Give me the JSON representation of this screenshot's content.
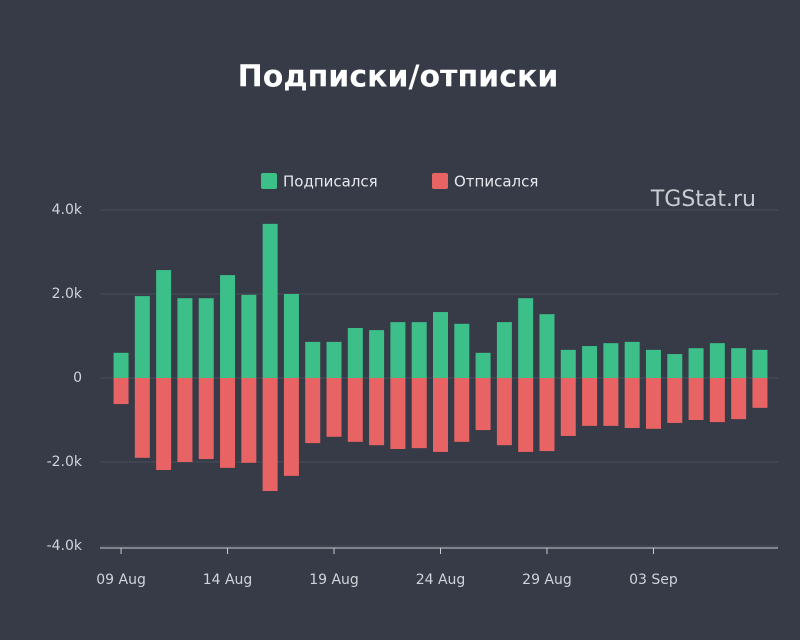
{
  "chart_data": {
    "type": "bar",
    "title": "Подписки/отписки",
    "watermark": "TGStat.ru",
    "categories": [
      "09 Aug",
      null,
      null,
      null,
      null,
      "14 Aug",
      null,
      null,
      null,
      null,
      "19 Aug",
      null,
      null,
      null,
      null,
      "24 Aug",
      null,
      null,
      null,
      null,
      "29 Aug",
      null,
      null,
      null,
      null,
      "03 Sep",
      null,
      null,
      null,
      null,
      null
    ],
    "series": [
      {
        "name": "Подписался",
        "color": "#3dbf8a",
        "values": [
          600,
          1950,
          2570,
          1900,
          1900,
          2450,
          1980,
          3670,
          2000,
          860,
          860,
          1190,
          1140,
          1330,
          1330,
          1570,
          1290,
          600,
          1330,
          1900,
          1520,
          670,
          760,
          830,
          860,
          670,
          570,
          710,
          830,
          710,
          670
        ]
      },
      {
        "name": "Отписался",
        "color": "#e86464",
        "values": [
          -620,
          -1900,
          -2190,
          -2000,
          -1930,
          -2140,
          -2020,
          -2690,
          -2330,
          -1550,
          -1400,
          -1520,
          -1600,
          -1690,
          -1670,
          -1760,
          -1520,
          -1240,
          -1600,
          -1760,
          -1740,
          -1380,
          -1140,
          -1140,
          -1190,
          -1210,
          -1070,
          -1000,
          -1050,
          -980,
          -710
        ]
      }
    ],
    "ylim": [
      -4000,
      4000
    ],
    "yticks": [
      {
        "value": -4000,
        "label": "-4.0k"
      },
      {
        "value": -2000,
        "label": "-2.0k"
      },
      0,
      {
        "value": 2000,
        "label": "2.0k"
      },
      {
        "value": 4000,
        "label": "4.0k"
      }
    ],
    "grid": true
  }
}
